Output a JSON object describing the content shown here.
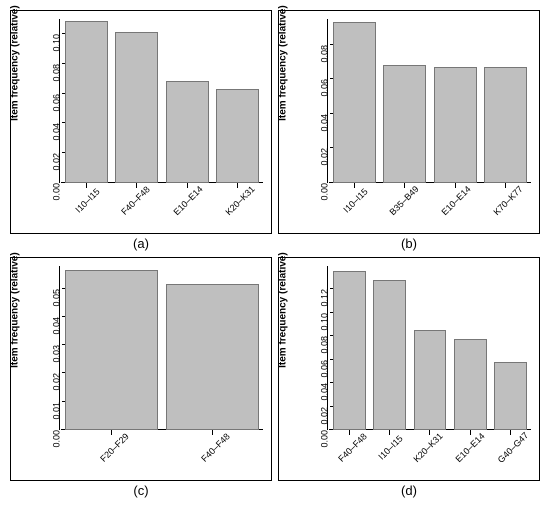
{
  "global": {
    "ylabel": "Item frequency (relative)",
    "bar_color": "#bfbfbf",
    "bar_border": "#777777",
    "panel_border": "#000000",
    "background": "#ffffff",
    "font_family": "Arial",
    "ylabel_fontsize": 10,
    "tick_fontsize": 9,
    "caption_fontsize": 13
  },
  "panels": {
    "a": {
      "caption": "(a)",
      "type": "bar",
      "ymax": 0.11,
      "yticks": [
        "0.00",
        "0.02",
        "0.04",
        "0.06",
        "0.08",
        "0.10"
      ],
      "ytick_vals": [
        0.0,
        0.02,
        0.04,
        0.06,
        0.08,
        0.1
      ],
      "categories": [
        "I10–I15",
        "F40–F48",
        "E10–E14",
        "K20–K31"
      ],
      "values": [
        0.107,
        0.1,
        0.067,
        0.062
      ]
    },
    "b": {
      "caption": "(b)",
      "type": "bar",
      "ymax": 0.095,
      "yticks": [
        "0.00",
        "0.02",
        "0.04",
        "0.06",
        "0.08"
      ],
      "ytick_vals": [
        0.0,
        0.02,
        0.04,
        0.06,
        0.08
      ],
      "categories": [
        "I10–I15",
        "B35–B49",
        "E10–E14",
        "K70–K77"
      ],
      "values": [
        0.092,
        0.067,
        0.066,
        0.066
      ]
    },
    "c": {
      "caption": "(c)",
      "type": "bar",
      "ymax": 0.058,
      "yticks": [
        "0.00",
        "0.01",
        "0.02",
        "0.03",
        "0.04",
        "0.05"
      ],
      "ytick_vals": [
        0.0,
        0.01,
        0.02,
        0.03,
        0.04,
        0.05
      ],
      "categories": [
        "F20–F29",
        "F40–F48"
      ],
      "values": [
        0.056,
        0.051
      ]
    },
    "d": {
      "caption": "(d)",
      "type": "bar",
      "ymax": 0.14,
      "yticks": [
        "0.00",
        "0.02",
        "0.04",
        "0.06",
        "0.08",
        "0.10",
        "0.12"
      ],
      "ytick_vals": [
        0.0,
        0.02,
        0.04,
        0.06,
        0.08,
        0.1,
        0.12
      ],
      "categories": [
        "F40–F48",
        "I10–I15",
        "K20–K31",
        "E10–E14",
        "G40–G47"
      ],
      "values": [
        0.134,
        0.126,
        0.084,
        0.076,
        0.056
      ]
    }
  }
}
